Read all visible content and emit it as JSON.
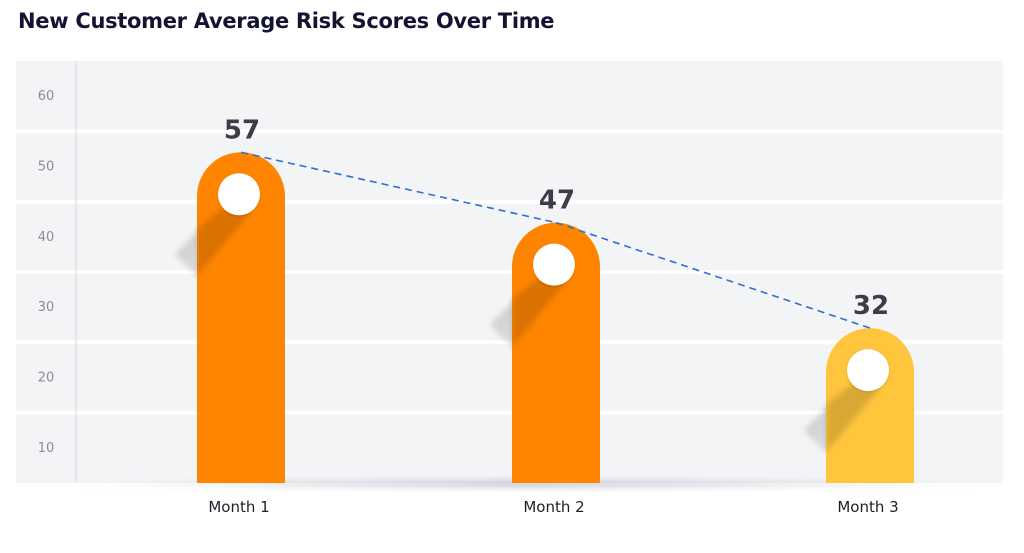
{
  "chart_data": {
    "type": "bar",
    "title": "New Customer Average Risk Scores Over Time",
    "categories": [
      "Month 1",
      "Month 2",
      "Month 3"
    ],
    "values": [
      57,
      47,
      32
    ],
    "data_labels": [
      "57",
      "47",
      "32"
    ],
    "ylim": [
      5,
      65
    ],
    "yticks": [
      10,
      20,
      30,
      40,
      50,
      60
    ],
    "ytick_labels": [
      "10",
      "20",
      "30",
      "40",
      "50",
      "60"
    ],
    "xlabel": "",
    "ylabel": "",
    "grid": "horizontal bands",
    "trendline": "dashed line connecting bar tops",
    "colors": {
      "bar": [
        "#ff8500",
        "#ff8500",
        "#fec53d"
      ],
      "trendline": "#2e6fd3",
      "plot_background": "#f3f4f6",
      "marker": "#ffffff"
    }
  }
}
